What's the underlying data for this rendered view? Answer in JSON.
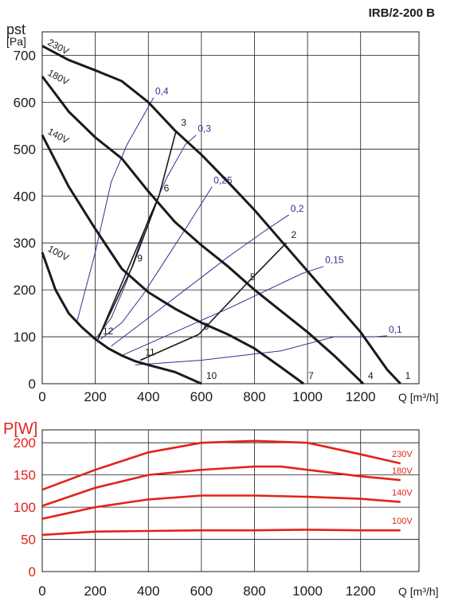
{
  "title": "IRB/2-200 B",
  "top_y_label_symbol": "pst",
  "top_y_label_unit": "[Pa]",
  "x_label": "Q [m³/h]",
  "bottom_y_label": "P[W]",
  "chart_data": [
    {
      "type": "line",
      "title": "IRB/2-200 B",
      "xlabel": "Q [m³/h]",
      "ylabel": "pst [Pa]",
      "xlim": [
        0,
        1420
      ],
      "ylim": [
        0,
        750
      ],
      "grid": true,
      "x_ticks": [
        0,
        200,
        400,
        600,
        800,
        1000,
        1200
      ],
      "y_ticks": [
        0,
        100,
        200,
        300,
        400,
        500,
        600,
        700
      ],
      "series": [
        {
          "name": "230V",
          "x": [
            0,
            100,
            200,
            300,
            400,
            500,
            600,
            700,
            800,
            900,
            1000,
            1100,
            1200,
            1300,
            1350
          ],
          "y": [
            720,
            690,
            668,
            645,
            600,
            540,
            488,
            430,
            370,
            305,
            240,
            175,
            110,
            30,
            0
          ]
        },
        {
          "name": "180V",
          "x": [
            0,
            100,
            200,
            300,
            400,
            500,
            600,
            700,
            800,
            900,
            1000,
            1100,
            1210
          ],
          "y": [
            655,
            580,
            525,
            480,
            410,
            345,
            295,
            250,
            200,
            155,
            110,
            60,
            0
          ]
        },
        {
          "name": "140V",
          "x": [
            0,
            100,
            200,
            300,
            400,
            500,
            600,
            700,
            800,
            900,
            985
          ],
          "y": [
            530,
            420,
            330,
            245,
            195,
            160,
            130,
            105,
            75,
            35,
            0
          ]
        },
        {
          "name": "100V",
          "x": [
            0,
            50,
            100,
            150,
            200,
            250,
            300,
            350,
            400,
            500,
            600
          ],
          "y": [
            280,
            200,
            150,
            120,
            95,
            75,
            60,
            48,
            40,
            25,
            0
          ]
        }
      ],
      "operating_points": [
        {
          "label": "1",
          "x": 1350,
          "y": 0
        },
        {
          "label": "2",
          "x": 920,
          "y": 300
        },
        {
          "label": "3",
          "x": 505,
          "y": 540
        },
        {
          "label": "4",
          "x": 1210,
          "y": 0
        },
        {
          "label": "5",
          "x": 765,
          "y": 210
        },
        {
          "label": "6",
          "x": 440,
          "y": 400
        },
        {
          "label": "7",
          "x": 985,
          "y": 0
        },
        {
          "label": "8",
          "x": 590,
          "y": 105
        },
        {
          "label": "9",
          "x": 340,
          "y": 250
        },
        {
          "label": "10",
          "x": 600,
          "y": 0
        },
        {
          "label": "11",
          "x": 370,
          "y": 50
        },
        {
          "label": "12",
          "x": 210,
          "y": 95
        }
      ],
      "system_curves": [
        {
          "name": "0,4",
          "x": [
            130,
            200,
            260,
            320,
            380,
            420
          ],
          "y": [
            130,
            280,
            430,
            510,
            570,
            610
          ]
        },
        {
          "name": "0,3",
          "x": [
            200,
            260,
            320,
            400,
            470,
            540,
            580
          ],
          "y": [
            95,
            140,
            220,
            350,
            440,
            510,
            530
          ]
        },
        {
          "name": "0,25",
          "x": [
            220,
            300,
            380,
            460,
            540,
            640
          ],
          "y": [
            95,
            130,
            190,
            260,
            330,
            420
          ]
        },
        {
          "name": "0,2",
          "x": [
            260,
            400,
            550,
            700,
            850,
            930
          ],
          "y": [
            80,
            140,
            205,
            270,
            330,
            360
          ]
        },
        {
          "name": "0,15",
          "x": [
            300,
            500,
            700,
            850,
            980,
            1060
          ],
          "y": [
            60,
            110,
            160,
            200,
            235,
            250
          ]
        },
        {
          "name": "0,1",
          "x": [
            350,
            600,
            900,
            1100,
            1250,
            1300
          ],
          "y": [
            40,
            50,
            70,
            100,
            100,
            102
          ]
        }
      ]
    },
    {
      "type": "line",
      "title": "",
      "xlabel": "Q [m³/h]",
      "ylabel": "P[W]",
      "xlim": [
        0,
        1420
      ],
      "ylim": [
        0,
        220
      ],
      "grid": true,
      "x_ticks": [
        0,
        200,
        400,
        600,
        800,
        1000,
        1200
      ],
      "y_ticks": [
        0,
        50,
        100,
        150,
        200
      ],
      "series": [
        {
          "name": "230V",
          "x": [
            0,
            200,
            400,
            600,
            800,
            1000,
            1200,
            1350
          ],
          "y": [
            127,
            158,
            185,
            200,
            203,
            200,
            182,
            168
          ]
        },
        {
          "name": "180V",
          "x": [
            0,
            200,
            400,
            600,
            800,
            900,
            1000,
            1200,
            1350
          ],
          "y": [
            102,
            130,
            150,
            158,
            163,
            163,
            158,
            148,
            142
          ]
        },
        {
          "name": "140V",
          "x": [
            0,
            200,
            400,
            600,
            800,
            1000,
            1200,
            1350
          ],
          "y": [
            82,
            100,
            112,
            118,
            118,
            116,
            113,
            108
          ]
        },
        {
          "name": "100V",
          "x": [
            0,
            200,
            400,
            600,
            800,
            1000,
            1200,
            1350
          ],
          "y": [
            57,
            62,
            63,
            64,
            64,
            65,
            64,
            64
          ]
        }
      ]
    }
  ],
  "colors": {
    "curve": "#1a1a1a",
    "system_curve": "#2e3192",
    "power_curve": "#e2231a",
    "power_axis": "#e2231a",
    "grid": "#1a1a1a"
  }
}
